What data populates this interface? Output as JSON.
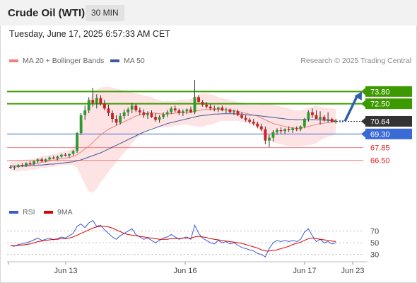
{
  "header": {
    "title": "Crude Oil (WTI)",
    "interval": "30 MIN"
  },
  "datetime": "Tuesday, June 17, 2025 6:57:33 AM CET",
  "legend": {
    "ma20_label": "MA 20 + Bollinger Bands",
    "ma50_label": "MA 50",
    "ma20_color": "#f08080",
    "ma50_color": "#3a5a9c",
    "copyright": "Research © 2025 Trading Central"
  },
  "rsi_legend": {
    "rsi_label": "RSI",
    "ma9_label": "9MA",
    "rsi_color": "#3a5ad6",
    "ma9_color": "#dd0000"
  },
  "chart_data": {
    "type": "candlestick",
    "price_range": [
      64.0,
      76.0
    ],
    "current_price": 70.64,
    "levels": [
      {
        "value": 73.8,
        "label": "73.80",
        "kind": "resistance",
        "color": "#3c9a00",
        "label_bg": "#3c9a00",
        "label_color": "#ffffff"
      },
      {
        "value": 72.5,
        "label": "72.50",
        "kind": "resistance",
        "color": "#3c9a00",
        "label_bg": "#3c9a00",
        "label_color": "#ffffff"
      },
      {
        "value": 70.64,
        "label": "70.64",
        "kind": "current",
        "color": "#333333",
        "label_bg": "#333333",
        "label_color": "#ffffff"
      },
      {
        "value": 69.3,
        "label": "69.30",
        "kind": "pivot",
        "color": "#3a6ad6",
        "label_bg": "#3a6ad6",
        "label_color": "#ffffff"
      },
      {
        "value": 67.85,
        "label": "67.85",
        "kind": "support",
        "color": "#f08080",
        "label_bg": "none",
        "label_color": "#dd2222"
      },
      {
        "value": 66.5,
        "label": "66.50",
        "kind": "support",
        "color": "#f08080",
        "label_bg": "none",
        "label_color": "#dd2222"
      }
    ],
    "forecast_arrow": {
      "from": 70.64,
      "to": 73.8
    },
    "x_ticks": [
      "Jun 13",
      "Jun 16",
      "Jun 17",
      "Jun 23"
    ],
    "candles": [
      [
        65.8,
        66.0,
        65.6,
        65.7
      ],
      [
        65.7,
        65.9,
        65.5,
        65.8
      ],
      [
        65.8,
        66.1,
        65.7,
        66.0
      ],
      [
        66.0,
        66.2,
        65.8,
        65.9
      ],
      [
        65.9,
        66.3,
        65.8,
        66.2
      ],
      [
        66.2,
        66.4,
        66.0,
        66.1
      ],
      [
        66.1,
        66.5,
        66.0,
        66.4
      ],
      [
        66.4,
        66.7,
        66.2,
        66.6
      ],
      [
        66.6,
        66.8,
        66.3,
        66.4
      ],
      [
        66.4,
        66.7,
        66.3,
        66.6
      ],
      [
        66.6,
        66.9,
        66.5,
        66.8
      ],
      [
        66.8,
        67.0,
        66.6,
        66.7
      ],
      [
        66.7,
        67.0,
        66.5,
        66.9
      ],
      [
        66.9,
        67.2,
        66.8,
        67.1
      ],
      [
        67.1,
        67.3,
        66.9,
        67.0
      ],
      [
        67.0,
        67.2,
        66.8,
        67.2
      ],
      [
        67.2,
        67.6,
        67.0,
        67.5
      ],
      [
        67.5,
        69.5,
        67.3,
        69.4
      ],
      [
        69.4,
        71.5,
        69.2,
        71.3
      ],
      [
        71.3,
        72.3,
        70.8,
        71.8
      ],
      [
        71.8,
        73.2,
        71.5,
        72.9
      ],
      [
        72.9,
        74.2,
        72.2,
        72.6
      ],
      [
        72.6,
        73.5,
        72.0,
        73.1
      ],
      [
        73.1,
        73.4,
        72.3,
        72.5
      ],
      [
        72.5,
        72.9,
        71.8,
        72.0
      ],
      [
        72.0,
        72.4,
        71.2,
        71.5
      ],
      [
        71.5,
        71.8,
        70.5,
        70.9
      ],
      [
        70.9,
        71.3,
        70.2,
        70.5
      ],
      [
        70.5,
        71.5,
        70.3,
        71.2
      ],
      [
        71.2,
        71.9,
        70.9,
        71.6
      ],
      [
        71.6,
        72.1,
        71.2,
        71.9
      ],
      [
        71.9,
        72.6,
        71.5,
        72.3
      ],
      [
        72.3,
        72.5,
        71.6,
        71.8
      ],
      [
        71.8,
        72.1,
        71.3,
        71.6
      ],
      [
        71.6,
        71.9,
        71.0,
        71.3
      ],
      [
        71.3,
        71.7,
        70.9,
        71.5
      ],
      [
        71.5,
        71.8,
        71.0,
        71.1
      ],
      [
        71.1,
        71.5,
        70.6,
        70.8
      ],
      [
        70.8,
        71.3,
        70.5,
        71.1
      ],
      [
        71.1,
        71.6,
        70.9,
        71.4
      ],
      [
        71.4,
        71.8,
        71.1,
        71.6
      ],
      [
        71.6,
        72.2,
        71.4,
        72.0
      ],
      [
        72.0,
        72.3,
        71.6,
        71.8
      ],
      [
        71.8,
        72.0,
        71.3,
        71.5
      ],
      [
        71.5,
        71.9,
        71.2,
        71.7
      ],
      [
        71.7,
        72.0,
        71.4,
        71.9
      ],
      [
        71.9,
        72.2,
        71.5,
        71.6
      ],
      [
        71.6,
        75.0,
        71.4,
        73.2
      ],
      [
        73.2,
        73.4,
        72.6,
        72.7
      ],
      [
        72.7,
        72.9,
        72.2,
        72.4
      ],
      [
        72.4,
        72.7,
        72.0,
        72.2
      ],
      [
        72.2,
        72.5,
        71.8,
        72.0
      ],
      [
        72.0,
        72.3,
        71.7,
        71.9
      ],
      [
        71.9,
        72.2,
        71.6,
        72.1
      ],
      [
        72.1,
        72.3,
        71.7,
        71.8
      ],
      [
        71.8,
        72.1,
        71.5,
        71.9
      ],
      [
        71.9,
        72.0,
        71.5,
        71.6
      ],
      [
        71.6,
        71.9,
        71.3,
        71.7
      ],
      [
        71.7,
        71.9,
        71.2,
        71.3
      ],
      [
        71.3,
        71.6,
        70.9,
        71.0
      ],
      [
        71.0,
        71.3,
        70.6,
        70.8
      ],
      [
        70.8,
        71.0,
        70.4,
        70.6
      ],
      [
        70.6,
        70.9,
        70.2,
        70.4
      ],
      [
        70.4,
        70.6,
        69.9,
        70.1
      ],
      [
        70.1,
        70.4,
        69.6,
        69.8
      ],
      [
        69.8,
        70.1,
        68.2,
        68.6
      ],
      [
        68.6,
        69.2,
        67.9,
        68.9
      ],
      [
        68.9,
        69.7,
        68.5,
        69.5
      ],
      [
        69.5,
        69.9,
        69.2,
        69.7
      ],
      [
        69.7,
        70.0,
        69.3,
        69.6
      ],
      [
        69.6,
        69.9,
        69.3,
        69.8
      ],
      [
        69.8,
        70.1,
        69.5,
        69.7
      ],
      [
        69.7,
        70.0,
        69.4,
        69.9
      ],
      [
        69.9,
        70.1,
        69.6,
        69.8
      ],
      [
        69.8,
        70.2,
        69.6,
        70.1
      ],
      [
        70.1,
        71.0,
        69.9,
        70.9
      ],
      [
        70.9,
        71.8,
        70.6,
        71.6
      ],
      [
        71.6,
        72.0,
        71.0,
        71.3
      ],
      [
        71.3,
        71.8,
        70.9,
        70.9
      ],
      [
        70.9,
        71.7,
        70.3,
        71.1
      ],
      [
        71.1,
        71.3,
        70.6,
        70.8
      ],
      [
        70.8,
        71.6,
        70.5,
        70.9
      ],
      [
        70.9,
        71.0,
        70.5,
        70.6
      ],
      [
        70.6,
        70.9,
        70.4,
        70.7
      ]
    ],
    "ma20": [
      65.9,
      65.9,
      65.9,
      65.95,
      66.0,
      66.05,
      66.1,
      66.2,
      66.3,
      66.35,
      66.45,
      66.5,
      66.6,
      66.7,
      66.75,
      66.8,
      66.9,
      67.1,
      67.4,
      67.7,
      68.0,
      68.4,
      68.8,
      69.2,
      69.5,
      69.8,
      70.0,
      70.2,
      70.4,
      70.6,
      70.8,
      71.0,
      71.2,
      71.3,
      71.4,
      71.5,
      71.55,
      71.5,
      71.45,
      71.4,
      71.4,
      71.45,
      71.5,
      71.55,
      71.6,
      71.6,
      71.6,
      71.7,
      71.8,
      71.85,
      71.9,
      71.9,
      71.9,
      71.9,
      71.9,
      71.85,
      71.8,
      71.75,
      71.7,
      71.6,
      71.5,
      71.4,
      71.3,
      71.2,
      71.0,
      70.8,
      70.6,
      70.4,
      70.3,
      70.2,
      70.1,
      70.0,
      69.95,
      69.9,
      69.9,
      70.0,
      70.1,
      70.2,
      70.3,
      70.4,
      70.45,
      70.5,
      70.55,
      70.6
    ],
    "ma50": [
      65.9,
      65.9,
      65.9,
      65.9,
      65.9,
      65.95,
      65.95,
      66.0,
      66.0,
      66.05,
      66.1,
      66.1,
      66.15,
      66.2,
      66.25,
      66.3,
      66.35,
      66.45,
      66.55,
      66.7,
      66.85,
      67.0,
      67.15,
      67.3,
      67.5,
      67.7,
      67.9,
      68.1,
      68.3,
      68.5,
      68.7,
      68.9,
      69.1,
      69.3,
      69.5,
      69.65,
      69.8,
      69.95,
      70.1,
      70.25,
      70.4,
      70.5,
      70.6,
      70.7,
      70.8,
      70.9,
      71.0,
      71.1,
      71.2,
      71.25,
      71.3,
      71.35,
      71.4,
      71.4,
      71.45,
      71.45,
      71.45,
      71.45,
      71.4,
      71.4,
      71.35,
      71.3,
      71.3,
      71.25,
      71.2,
      71.15,
      71.1,
      71.05,
      71.0,
      70.95,
      70.9,
      70.85,
      70.85,
      70.8,
      70.8,
      70.8,
      70.8,
      70.8,
      70.8,
      70.8,
      70.75,
      70.75,
      70.7,
      70.7
    ],
    "bb_upper": [
      66.4,
      66.4,
      66.5,
      66.5,
      66.6,
      66.6,
      66.7,
      66.8,
      66.9,
      67.0,
      67.1,
      67.2,
      67.3,
      67.4,
      67.5,
      67.6,
      67.8,
      68.5,
      70.0,
      71.5,
      72.8,
      73.6,
      74.0,
      74.2,
      74.3,
      74.3,
      74.2,
      74.1,
      74.0,
      73.9,
      73.8,
      73.7,
      73.6,
      73.5,
      73.4,
      73.3,
      73.2,
      73.0,
      72.9,
      72.8,
      72.8,
      72.8,
      72.8,
      72.9,
      72.9,
      72.9,
      73.0,
      73.3,
      73.5,
      73.6,
      73.6,
      73.5,
      73.4,
      73.2,
      73.1,
      73.0,
      72.9,
      72.8,
      72.7,
      72.6,
      72.5,
      72.4,
      72.4,
      72.4,
      72.5,
      72.6,
      72.5,
      72.4,
      72.3,
      72.2,
      72.1,
      72.0,
      71.9,
      71.8,
      71.8,
      71.9,
      72.1,
      72.2,
      72.3,
      72.2,
      72.1,
      72.0,
      72.0,
      71.9
    ],
    "bb_lower": [
      65.4,
      65.4,
      65.3,
      65.4,
      65.4,
      65.5,
      65.5,
      65.6,
      65.7,
      65.7,
      65.8,
      65.8,
      65.9,
      66.0,
      66.0,
      66.0,
      66.0,
      65.7,
      64.8,
      64.0,
      63.2,
      63.1,
      63.5,
      64.2,
      64.7,
      65.3,
      65.8,
      66.3,
      66.8,
      67.3,
      67.8,
      68.3,
      68.8,
      69.1,
      69.4,
      69.7,
      69.9,
      70.0,
      70.0,
      70.0,
      70.0,
      70.1,
      70.2,
      70.2,
      70.3,
      70.3,
      70.2,
      70.1,
      70.1,
      70.1,
      70.2,
      70.3,
      70.4,
      70.6,
      70.7,
      70.7,
      70.7,
      70.7,
      70.7,
      70.6,
      70.5,
      70.4,
      70.2,
      70.0,
      69.5,
      69.0,
      68.7,
      68.4,
      68.3,
      68.2,
      68.1,
      68.0,
      68.0,
      68.0,
      68.0,
      68.1,
      68.1,
      68.2,
      68.3,
      68.6,
      68.8,
      69.0,
      69.1,
      69.3
    ],
    "rsi": {
      "ticks": [
        70,
        50,
        30
      ],
      "range": [
        20,
        90
      ],
      "rsi": [
        45,
        44,
        47,
        48,
        50,
        52,
        55,
        58,
        54,
        56,
        58,
        55,
        57,
        60,
        58,
        62,
        66,
        78,
        82,
        76,
        84,
        88,
        78,
        80,
        72,
        66,
        60,
        56,
        62,
        66,
        70,
        74,
        64,
        60,
        56,
        58,
        54,
        50,
        54,
        58,
        60,
        64,
        60,
        56,
        58,
        60,
        56,
        80,
        66,
        58,
        54,
        50,
        48,
        54,
        50,
        52,
        48,
        50,
        46,
        42,
        40,
        38,
        36,
        32,
        30,
        26,
        40,
        50,
        54,
        52,
        54,
        52,
        54,
        52,
        56,
        68,
        74,
        62,
        52,
        56,
        50,
        52,
        48,
        50
      ],
      "ma9": [
        45,
        45,
        45,
        46,
        47,
        48,
        50,
        52,
        53,
        54,
        55,
        56,
        56,
        57,
        57,
        58,
        60,
        63,
        66,
        69,
        72,
        75,
        77,
        78,
        78,
        77,
        75,
        72,
        69,
        66,
        64,
        63,
        62,
        61,
        60,
        59,
        58,
        57,
        56,
        56,
        56,
        57,
        57,
        57,
        58,
        58,
        58,
        60,
        61,
        60,
        59,
        57,
        56,
        55,
        54,
        53,
        52,
        51,
        50,
        49,
        47,
        45,
        43,
        41,
        38,
        36,
        36,
        37,
        38,
        40,
        42,
        44,
        47,
        49,
        51,
        54,
        57,
        58,
        57,
        56,
        55,
        54,
        53,
        52
      ]
    }
  }
}
